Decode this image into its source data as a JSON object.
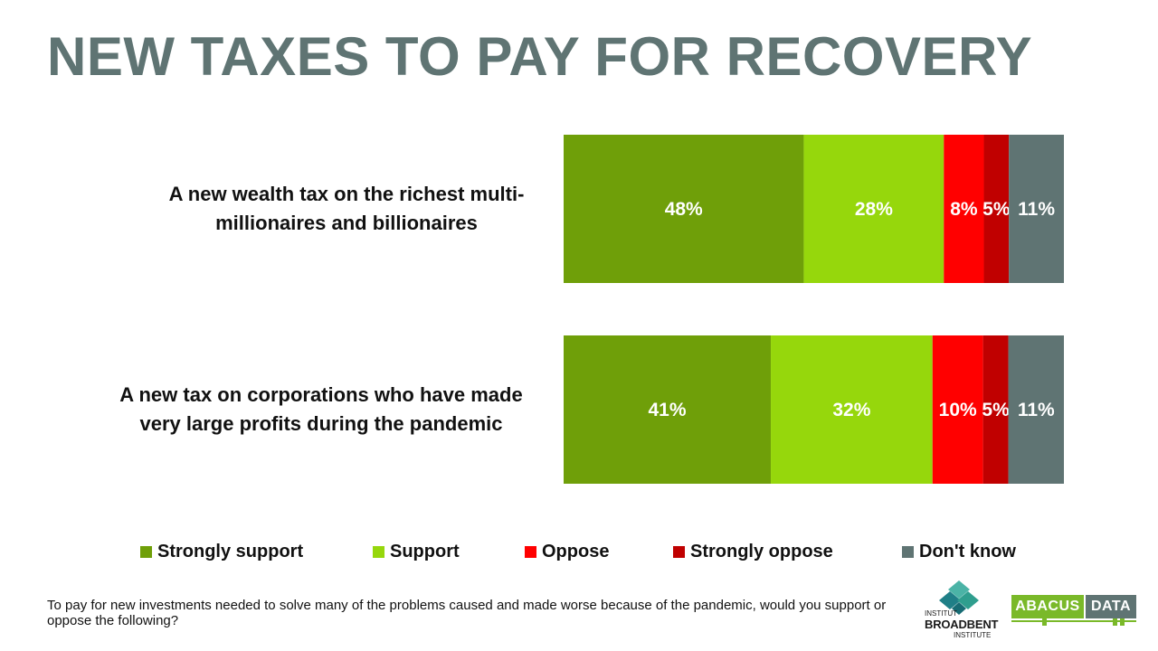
{
  "title": "NEW TAXES TO PAY FOR RECOVERY",
  "footnote": "To pay for new investments needed to solve many of the problems caused and made worse because of the pandemic, would you support or oppose the following?",
  "logos": {
    "broadbent": {
      "line1": "INSTITUT",
      "line2": "BROADBENT",
      "line3": "INSTITUTE"
    },
    "abacus": {
      "left": "ABACUS",
      "right": "DATA"
    }
  },
  "colors": {
    "title": "#5f7473",
    "strongly_support": "#6f9f09",
    "support": "#96d70c",
    "oppose": "#ff0000",
    "strongly_oppose": "#c00000",
    "dont_know": "#5f7473"
  },
  "chart_data": {
    "type": "bar",
    "orientation": "horizontal",
    "stacked": true,
    "legend_position": "bottom",
    "categories": [
      [
        "A new wealth tax on the richest multi-",
        "millionaires and billionaires"
      ],
      [
        "A new tax on corporations who have made",
        "very large profits during the pandemic"
      ]
    ],
    "series": [
      {
        "name": "Strongly support",
        "color": "#6f9f09",
        "values": [
          48,
          41
        ],
        "labels": [
          "48%",
          "41%"
        ]
      },
      {
        "name": "Support",
        "color": "#96d70c",
        "values": [
          28,
          32
        ],
        "labels": [
          "28%",
          "32%"
        ]
      },
      {
        "name": "Oppose",
        "color": "#ff0000",
        "values": [
          8,
          10
        ],
        "labels": [
          "8%",
          "10%"
        ]
      },
      {
        "name": "Strongly oppose",
        "color": "#c00000",
        "values": [
          5,
          5
        ],
        "labels": [
          "5%",
          "5%"
        ]
      },
      {
        "name": "Don't know",
        "color": "#5f7473",
        "values": [
          11,
          11
        ],
        "labels": [
          "11%",
          "11%"
        ]
      }
    ]
  }
}
